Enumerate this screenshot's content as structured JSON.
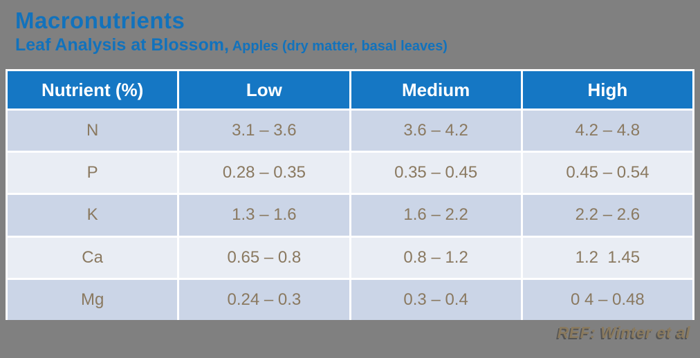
{
  "slide": {
    "title": "Macronutrients",
    "subtitle_main": "Leaf Analysis at Blossom,",
    "subtitle_detail": " Apples (dry matter, basal leaves)",
    "reference": "REF: Winter et al"
  },
  "colors": {
    "background_gray": "#808080",
    "title_blue": "#1272BC",
    "header_blue": "#1577C4",
    "row_dark_blue": "#CBD5E7",
    "row_light_blue": "#E9EDF4",
    "cell_text_brown": "#8A7960",
    "header_text": "#FFFFFF",
    "reference_tan": "#8A7A5E"
  },
  "table": {
    "headers": [
      "Nutrient (%)",
      "Low",
      "Medium",
      "High"
    ],
    "rows": [
      {
        "nutrient": "N",
        "low": "3.1 – 3.6",
        "medium": "3.6 – 4.2",
        "high": "4.2 – 4.8"
      },
      {
        "nutrient": "P",
        "low": "0.28 – 0.35",
        "medium": "0.35 – 0.45",
        "high": "0.45 – 0.54"
      },
      {
        "nutrient": "K",
        "low": "1.3 – 1.6",
        "medium": "1.6 – 2.2",
        "high": "2.2 – 2.6"
      },
      {
        "nutrient": "Ca",
        "low": "0.65 – 0.8",
        "medium": "0.8 – 1.2",
        "high": "1.2  1.45"
      },
      {
        "nutrient": "Mg",
        "low": "0.24 – 0.3",
        "medium": "0.3 – 0.4",
        "high": "0 4 – 0.48"
      }
    ]
  }
}
